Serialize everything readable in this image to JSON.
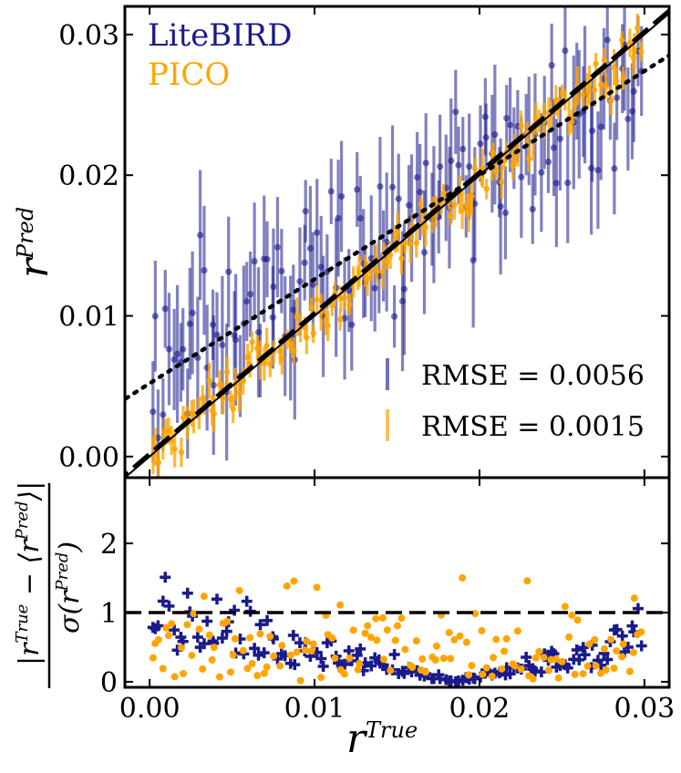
{
  "colors": {
    "litebird": "#1a1a8c",
    "pico": "#ffa500"
  },
  "legend": [
    {
      "label": "LiteBIRD",
      "color": "#1a1a8c"
    },
    {
      "label": "PICO",
      "color": "#ffa500"
    }
  ],
  "rmse_labels": [
    "RMSE = 0.0056",
    "RMSE = 0.0015"
  ],
  "chart_data": [
    {
      "type": "scatter",
      "xlabel": "r^True",
      "ylabel": "r^Pred",
      "xlim": [
        -0.0015,
        0.0315
      ],
      "ylim": [
        -0.0015,
        0.032
      ],
      "xticks": [
        "0.00",
        "0.01",
        "0.02",
        "0.03"
      ],
      "yticks": [
        "0.00",
        "0.01",
        "0.02",
        "0.03"
      ],
      "series": [
        {
          "name": "LiteBIRD",
          "error_bars": true,
          "approx_fit": {
            "slope": 0.72,
            "intercept": 0.0052
          },
          "rmse": "0.0056"
        },
        {
          "name": "PICO",
          "error_bars": true,
          "approx_fit": {
            "slope": 0.97,
            "intercept": 0.0003
          },
          "rmse": "0.0015"
        }
      ],
      "reference_lines": [
        {
          "style": "solid",
          "description": "y = x"
        },
        {
          "style": "dashed",
          "slope": 1.0,
          "intercept": 0.0002
        },
        {
          "style": "dotted",
          "slope": 0.74,
          "intercept": 0.0052
        }
      ],
      "x_range_points": [
        0.0,
        0.03
      ],
      "n_points_per_series": 140
    },
    {
      "type": "scatter",
      "xlabel": "r^True",
      "ylabel": "|r^True - <r^Pred>| / sigma(r^Pred)",
      "xlim": [
        -0.0015,
        0.0315
      ],
      "ylim": [
        -0.08,
        2.95
      ],
      "yticks": [
        "0",
        "1",
        "2"
      ],
      "reference_lines": [
        {
          "style": "dashed",
          "y": 1.0
        }
      ],
      "series": [
        {
          "name": "LiteBIRD",
          "marker": "plus"
        },
        {
          "name": "PICO",
          "marker": "circle"
        }
      ]
    }
  ]
}
